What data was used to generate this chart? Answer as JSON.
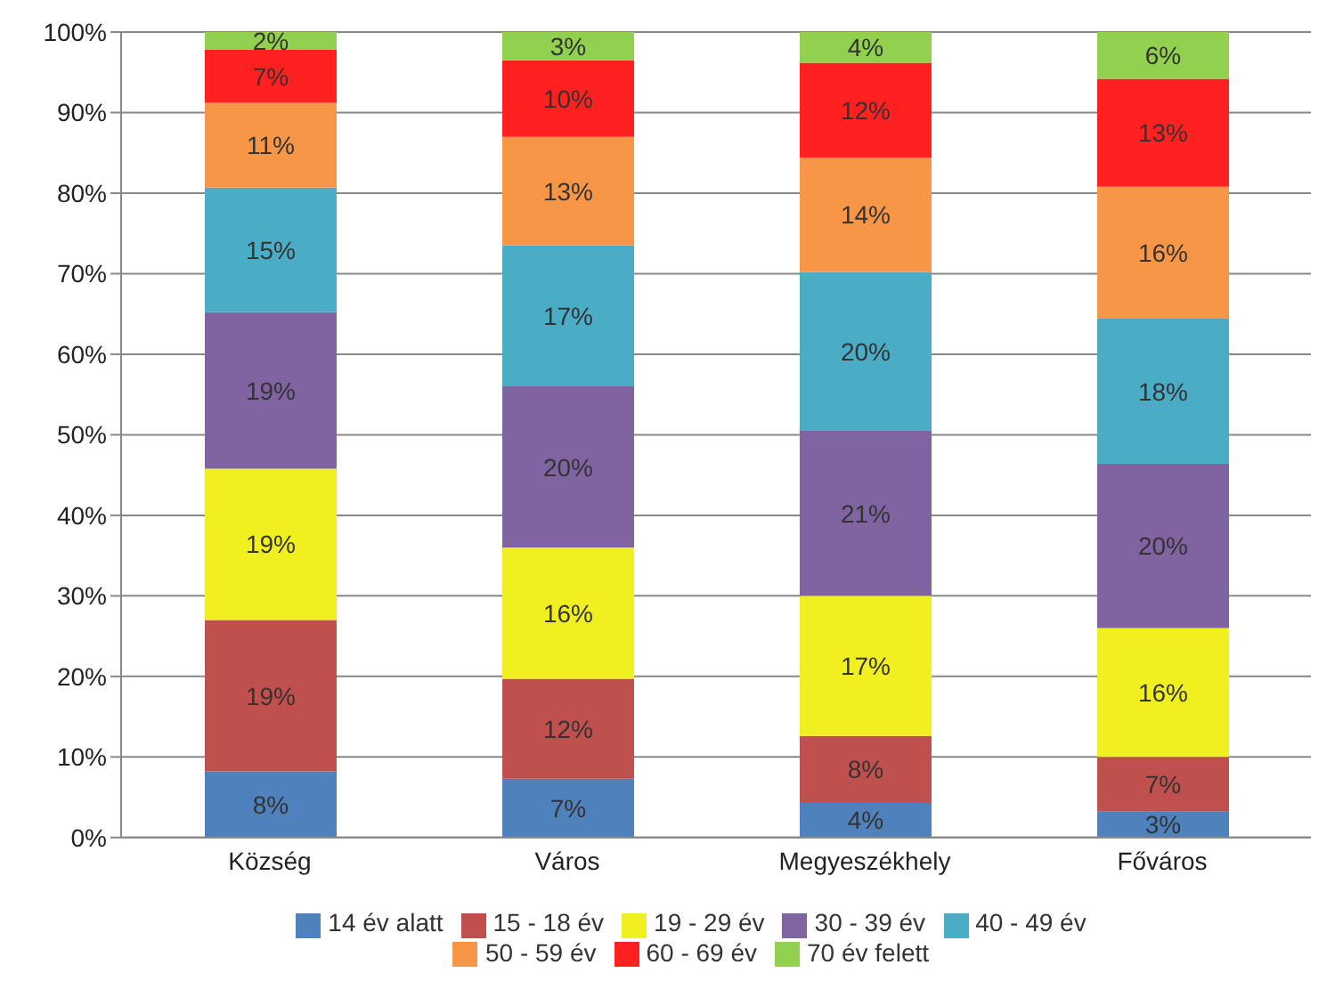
{
  "chart_data": {
    "type": "bar",
    "stacked": true,
    "categories": [
      "Község",
      "Város",
      "Megyeszékhely",
      "Főváros"
    ],
    "series": [
      {
        "name": "14 év alatt",
        "color": "#4f81bd",
        "values": [
          8.2,
          7.3,
          4.3,
          3.2
        ],
        "value_labels": [
          "8%",
          "7%",
          "4%",
          "3%"
        ]
      },
      {
        "name": "15 - 18 év",
        "color": "#c0504d",
        "values": [
          18.8,
          12.4,
          8.3,
          6.8
        ],
        "value_labels": [
          "19%",
          "12%",
          "8%",
          "7%"
        ]
      },
      {
        "name": "19 - 29 év",
        "color": "#f0f020",
        "values": [
          18.8,
          16.3,
          17.4,
          16
        ],
        "value_labels": [
          "19%",
          "16%",
          "17%",
          "16%"
        ]
      },
      {
        "name": "30 - 39 év",
        "color": "#8064a2",
        "values": [
          19.4,
          20,
          20.5,
          20.4
        ],
        "value_labels": [
          "19%",
          "20%",
          "21%",
          "20%"
        ]
      },
      {
        "name": "40 - 49 év",
        "color": "#4bacc6",
        "values": [
          15.5,
          17.5,
          19.7,
          18
        ],
        "value_labels": [
          "15%",
          "17%",
          "20%",
          "18%"
        ]
      },
      {
        "name": "50 - 59 év",
        "color": "#f79646",
        "values": [
          10.5,
          13.5,
          14.2,
          16.4
        ],
        "value_labels": [
          "11%",
          "13%",
          "14%",
          "16%"
        ]
      },
      {
        "name": "60 - 69 év",
        "color": "#ff2020",
        "values": [
          6.6,
          9.5,
          11.8,
          13.4
        ],
        "value_labels": [
          "7%",
          "10%",
          "12%",
          "13%"
        ]
      },
      {
        "name": "70 év felett",
        "color": "#92d050",
        "values": [
          2.2,
          3.5,
          3.8,
          5.8
        ],
        "value_labels": [
          "2%",
          "3%",
          "4%",
          "6%"
        ]
      }
    ],
    "ylim": [
      0,
      100
    ],
    "yticks": [
      {
        "value": 0,
        "label": "0%"
      },
      {
        "value": 10,
        "label": "10%"
      },
      {
        "value": 20,
        "label": "20%"
      },
      {
        "value": 30,
        "label": "30%"
      },
      {
        "value": 40,
        "label": "40%"
      },
      {
        "value": 50,
        "label": "50%"
      },
      {
        "value": 60,
        "label": "60%"
      },
      {
        "value": 70,
        "label": "70%"
      },
      {
        "value": 80,
        "label": "80%"
      },
      {
        "value": 90,
        "label": "90%"
      },
      {
        "value": 100,
        "label": "100%"
      }
    ],
    "grid": "y",
    "legend": "bottom"
  }
}
